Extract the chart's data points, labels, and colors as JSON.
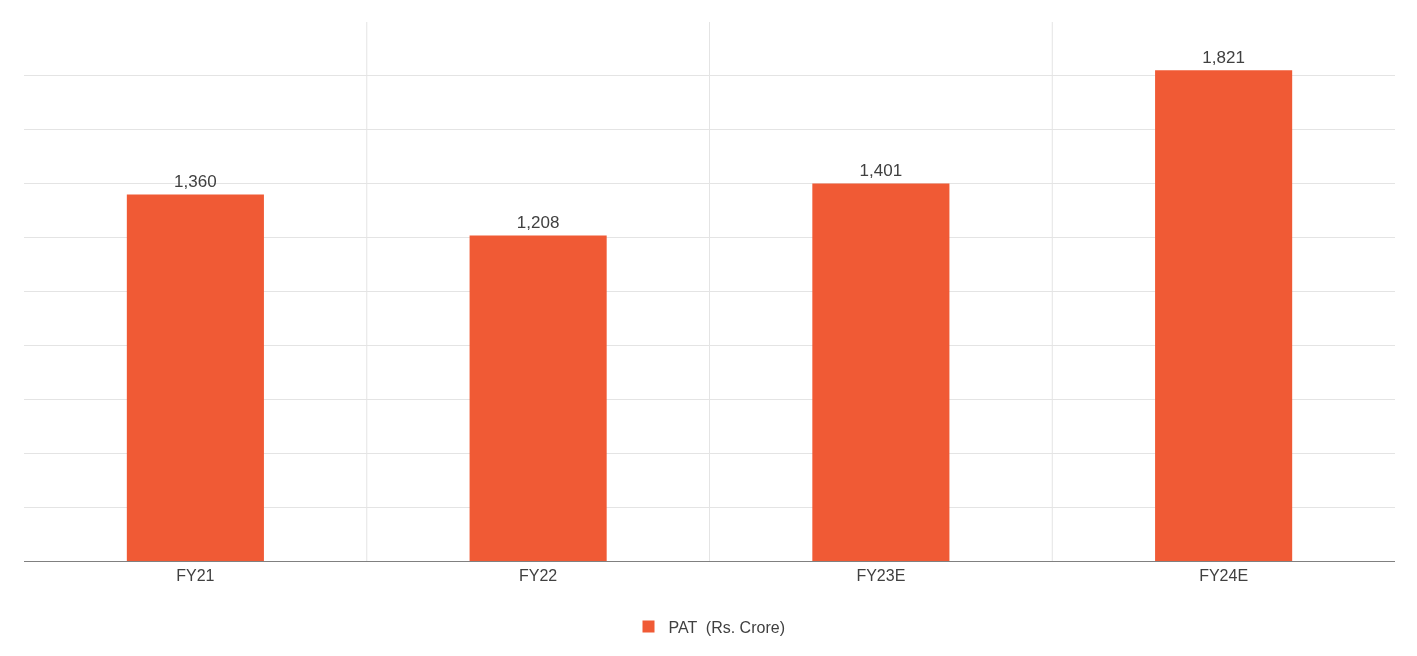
{
  "chart_data": {
    "type": "bar",
    "categories": [
      "FY21",
      "FY22",
      "FY23E",
      "FY24E"
    ],
    "series": [
      {
        "name": "PAT  (Rs. Crore)",
        "color": "#f05a35",
        "values": [
          1360,
          1208,
          1401,
          1821
        ],
        "value_labels": [
          "1,360",
          "1,208",
          "1,401",
          "1,821"
        ]
      }
    ],
    "ylim": [
      0,
      2000
    ],
    "yticks": [
      {
        "value": 0,
        "label": null
      },
      {
        "value": 200,
        "label": null
      },
      {
        "value": 400,
        "label": null
      },
      {
        "value": 600,
        "label": null
      },
      {
        "value": 800,
        "label": null
      },
      {
        "value": 1000,
        "label": null
      },
      {
        "value": 1200,
        "label": null
      },
      {
        "value": 1400,
        "label": null
      },
      {
        "value": 1600,
        "label": null
      },
      {
        "value": 1800,
        "label": null
      }
    ],
    "tick_labels": "x",
    "grid": true,
    "legend": "bottom"
  }
}
